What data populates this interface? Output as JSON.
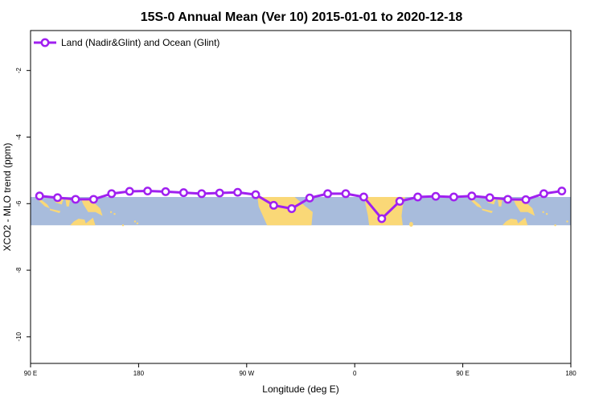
{
  "chart_data": {
    "type": "line",
    "title": "15S-0 Annual Mean (Ver 10)   2015-01-01 to 2020-12-18",
    "xlabel": "Longitude (deg E)",
    "ylabel": "XCO2 - MLO trend (ppm)",
    "x_ticks": [
      {
        "value": 90,
        "label": "90 E"
      },
      {
        "value": 180,
        "label": "180"
      },
      {
        "value": 270,
        "label": "90 W"
      },
      {
        "value": 360,
        "label": "0"
      },
      {
        "value": 450,
        "label": "90 E"
      },
      {
        "value": 540,
        "label": "180"
      }
    ],
    "y_ticks": [
      {
        "value": -2,
        "label": "-2"
      },
      {
        "value": -4,
        "label": "-4"
      },
      {
        "value": -6,
        "label": "-6"
      },
      {
        "value": -8,
        "label": "-8"
      },
      {
        "value": -10,
        "label": "-10"
      }
    ],
    "xlim": [
      90,
      540
    ],
    "ylim": [
      -10.8,
      -0.8
    ],
    "map_band": {
      "lat_top": 0,
      "lat_bottom": -15,
      "y_top": -5.8,
      "y_bottom": -6.65
    },
    "legend": {
      "position": "top-left"
    },
    "series": [
      {
        "name": "Land (Nadir&Glint) and Ocean (Glint)",
        "color": "#a020f0",
        "x": [
          97.5,
          112.5,
          127.5,
          142.5,
          157.5,
          172.5,
          187.5,
          202.5,
          217.5,
          232.5,
          247.5,
          262.5,
          277.5,
          292.5,
          307.5,
          322.5,
          337.5,
          352.5,
          367.5,
          382.5,
          397.5,
          412.5,
          427.5,
          442.5,
          457.5,
          472.5,
          487.5,
          502.5,
          517.5,
          532.5
        ],
        "values": [
          -5.77,
          -5.82,
          -5.87,
          -5.87,
          -5.7,
          -5.63,
          -5.62,
          -5.64,
          -5.67,
          -5.7,
          -5.68,
          -5.66,
          -5.73,
          -6.05,
          -6.15,
          -5.83,
          -5.7,
          -5.7,
          -5.8,
          -6.45,
          -5.93,
          -5.8,
          -5.78,
          -5.8,
          -5.77,
          -5.82,
          -5.87,
          -5.88,
          -5.7,
          -5.62
        ]
      }
    ]
  }
}
